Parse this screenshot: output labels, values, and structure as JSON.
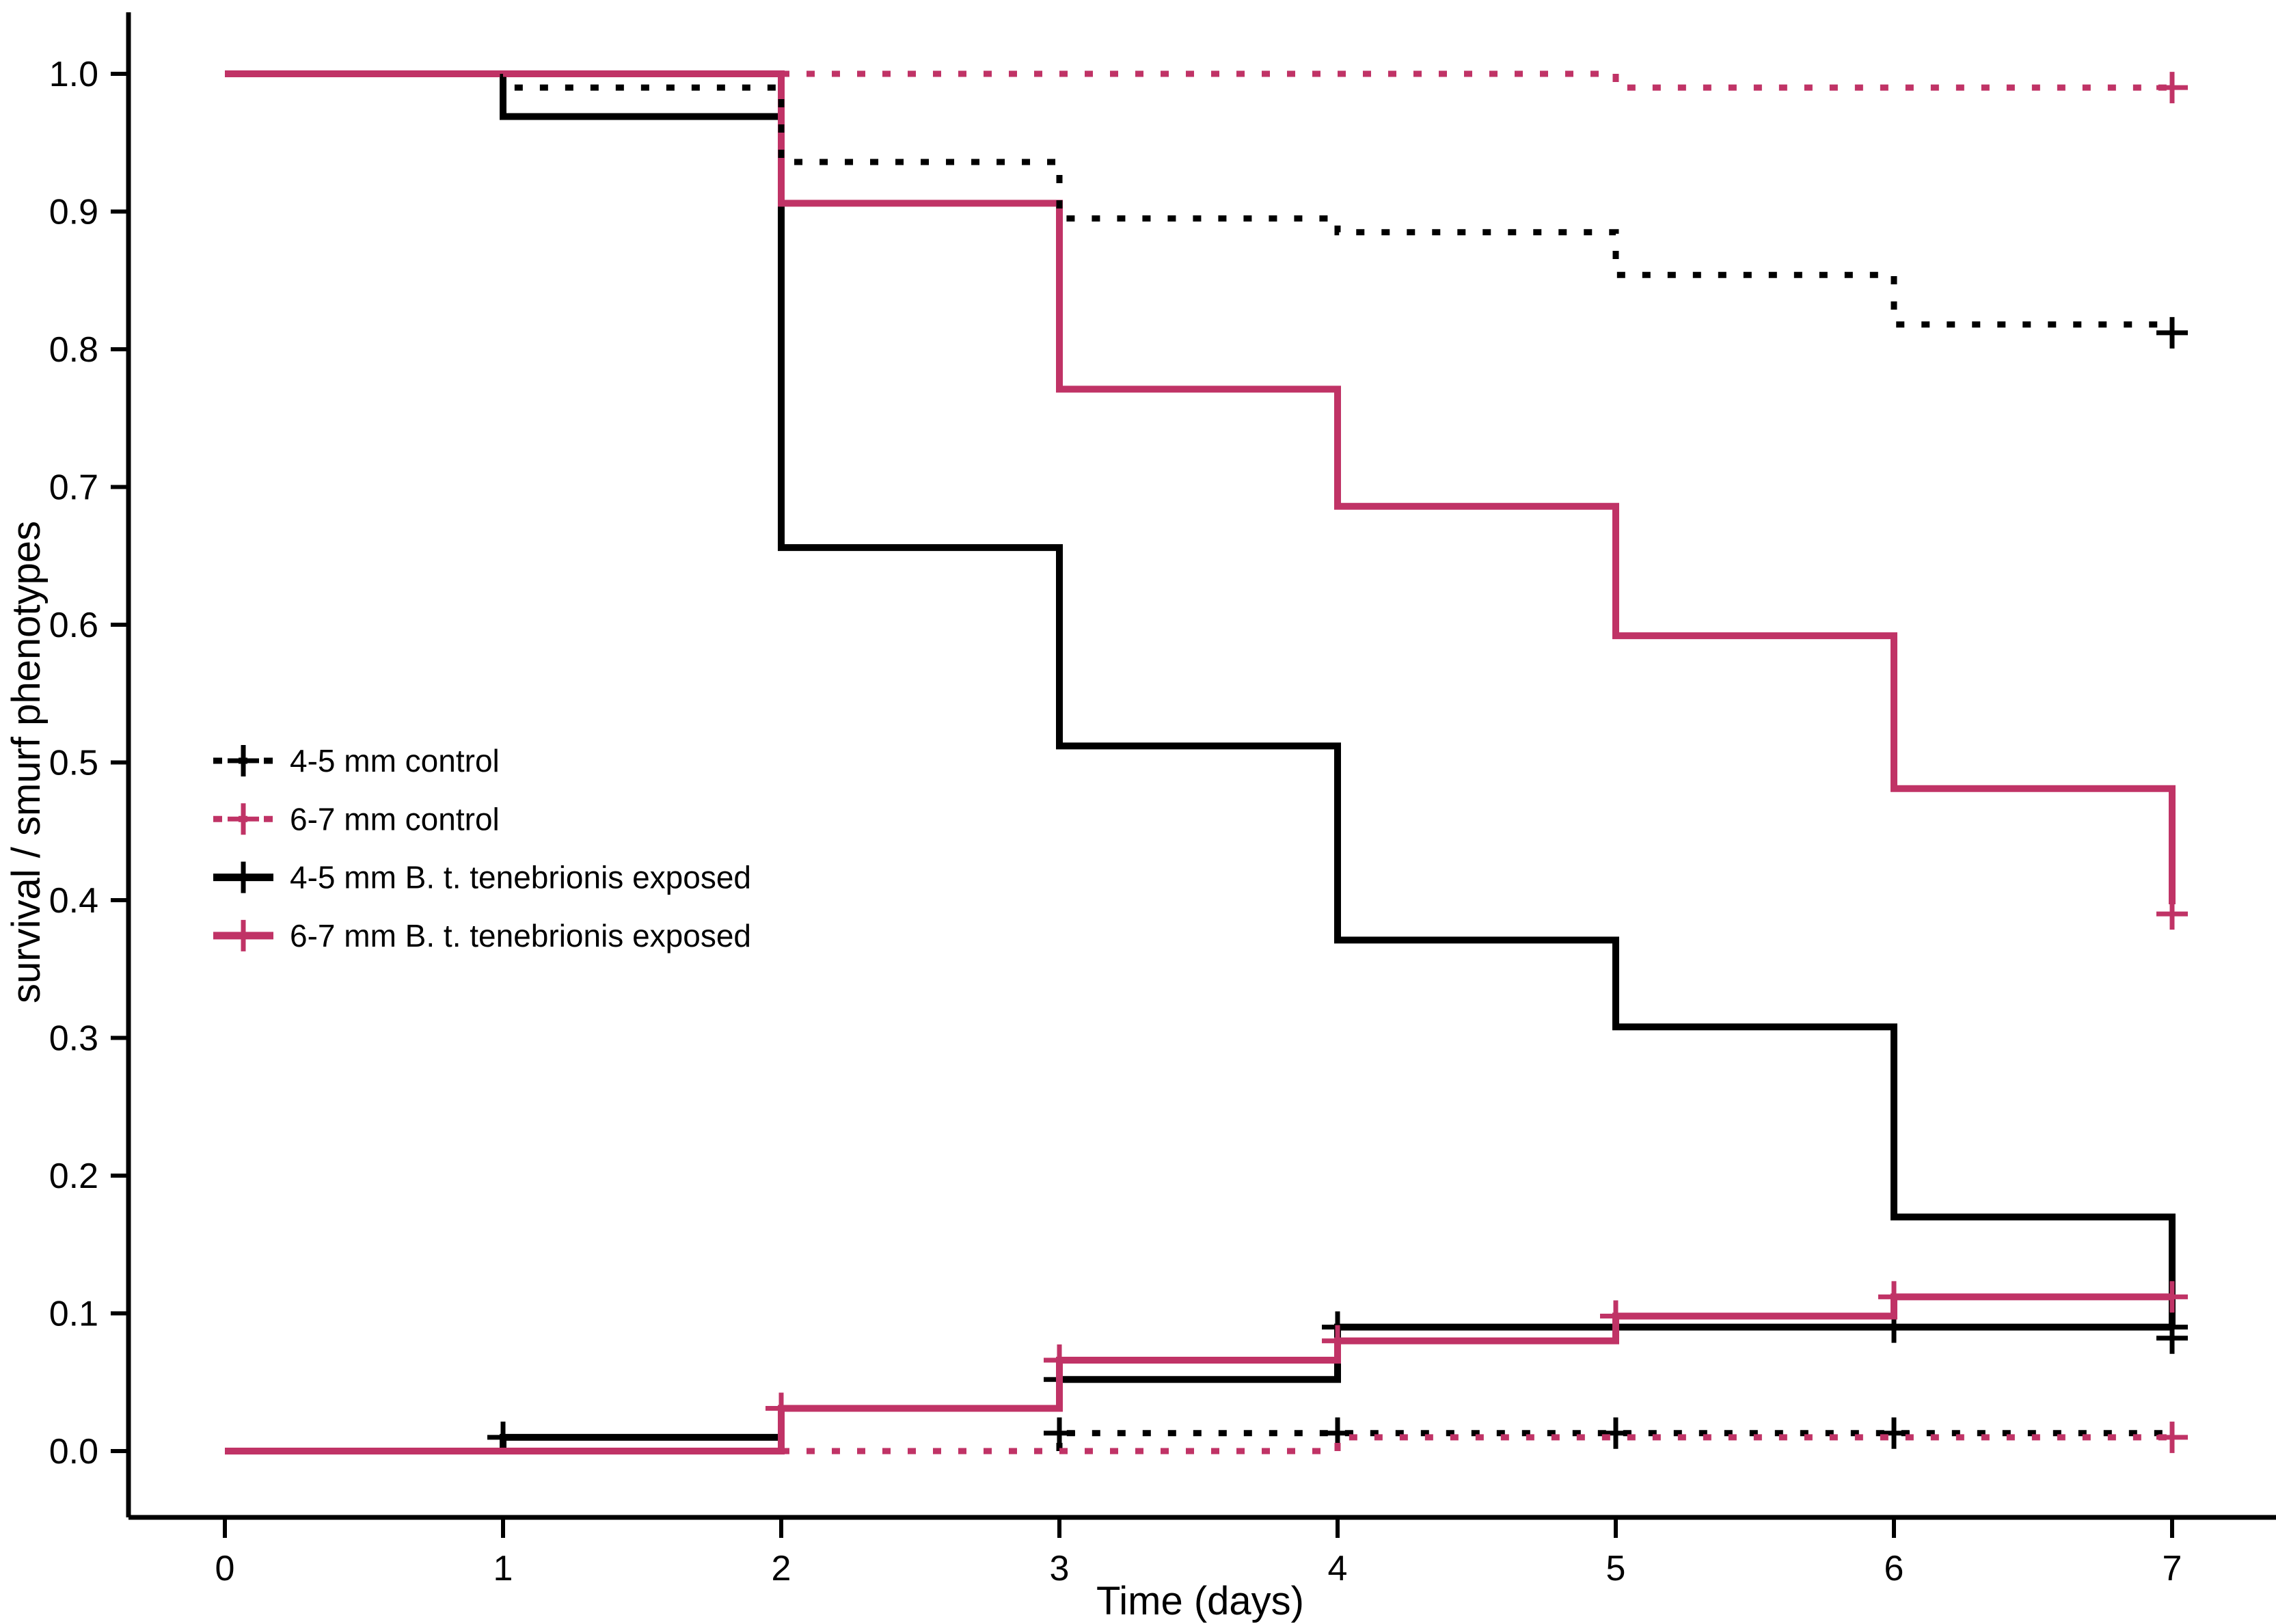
{
  "chart_data": {
    "type": "line",
    "subtype": "kaplan-meier-step-plot",
    "title": "",
    "xlabel": "Time (days)",
    "ylabel": "survival / smurf phenotypes",
    "xlim": [
      0,
      7
    ],
    "ylim": [
      0.0,
      1.0
    ],
    "grid": false,
    "background": "#ffffff",
    "axis_color": "#000000",
    "xticks": [
      "0",
      "1",
      "2",
      "3",
      "4",
      "5",
      "6",
      "7"
    ],
    "yticks": [
      "0.0",
      "0.1",
      "0.2",
      "0.3",
      "0.4",
      "0.5",
      "0.6",
      "0.7",
      "0.8",
      "0.9",
      "1.0"
    ],
    "legend_position": "left-middle-inside",
    "legend": [
      {
        "label": "4-5 mm control",
        "series": 0
      },
      {
        "label": "6-7 mm control",
        "series": 1
      },
      {
        "label": "4-5 mm B. t. tenebrionis exposed",
        "series": 2
      },
      {
        "label": "6-7 mm B. t. tenebrionis exposed",
        "series": 3
      }
    ],
    "draw_order": [
      2,
      3,
      4,
      5,
      0,
      1,
      6,
      7
    ],
    "series": [
      {
        "name": "4-5 mm control (survival)",
        "color": "#000000",
        "dash": "dotted",
        "steps": [
          [
            0,
            1.0
          ],
          [
            1,
            0.99
          ],
          [
            2,
            0.936
          ],
          [
            3,
            0.895
          ],
          [
            4,
            0.885
          ],
          [
            5,
            0.854
          ],
          [
            6,
            0.818
          ]
        ],
        "censors": [
          [
            7,
            0.812
          ]
        ]
      },
      {
        "name": "6-7 mm control (survival)",
        "color": "#C03366",
        "dash": "dotted",
        "steps": [
          [
            0,
            1.0
          ],
          [
            5,
            0.99
          ]
        ],
        "censors": [
          [
            7,
            0.99
          ]
        ]
      },
      {
        "name": "4-5 mm B. t. tenebrionis exposed (survival)",
        "color": "#000000",
        "dash": "solid",
        "steps": [
          [
            0,
            1.0
          ],
          [
            1,
            0.969
          ],
          [
            2,
            0.656
          ],
          [
            3,
            0.512
          ],
          [
            4,
            0.371
          ],
          [
            5,
            0.308
          ],
          [
            6,
            0.17
          ],
          [
            7,
            0.09
          ]
        ],
        "censors": [
          [
            7,
            0.082
          ]
        ]
      },
      {
        "name": "6-7 mm B. t. tenebrionis exposed (survival)",
        "color": "#C03366",
        "dash": "solid",
        "steps": [
          [
            0,
            1.0
          ],
          [
            2,
            0.906
          ],
          [
            3,
            0.771
          ],
          [
            4,
            0.686
          ],
          [
            5,
            0.592
          ],
          [
            6,
            0.481
          ],
          [
            7,
            0.397
          ]
        ],
        "censors": [
          [
            7,
            0.39
          ]
        ]
      },
      {
        "name": "4-5 mm B. t. tenebrionis exposed (smurf phenotypes)",
        "color": "#000000",
        "dash": "solid",
        "steps": [
          [
            0,
            0.0
          ],
          [
            1,
            0.01
          ],
          [
            2,
            0.031
          ],
          [
            3,
            0.052
          ],
          [
            4,
            0.09
          ]
        ],
        "censors": [
          [
            1,
            0.01
          ],
          [
            3,
            0.052
          ],
          [
            4,
            0.09
          ],
          [
            5,
            0.09
          ],
          [
            6,
            0.09
          ],
          [
            7,
            0.09
          ]
        ]
      },
      {
        "name": "6-7 mm B. t. tenebrionis exposed (smurf phenotypes)",
        "color": "#C03366",
        "dash": "solid",
        "steps": [
          [
            0,
            0.0
          ],
          [
            2,
            0.031
          ],
          [
            3,
            0.066
          ],
          [
            4,
            0.08
          ],
          [
            5,
            0.098
          ],
          [
            6,
            0.112
          ]
        ],
        "censors": [
          [
            2,
            0.031
          ],
          [
            3,
            0.066
          ],
          [
            4,
            0.08
          ],
          [
            5,
            0.098
          ],
          [
            6,
            0.112
          ],
          [
            7,
            0.112
          ]
        ]
      },
      {
        "name": "4-5 mm control (smurf phenotypes)",
        "color": "#000000",
        "dash": "dotted",
        "steps": [
          [
            0,
            0.0
          ],
          [
            3,
            0.013
          ]
        ],
        "censors": [
          [
            3,
            0.013
          ],
          [
            4,
            0.013
          ],
          [
            5,
            0.013
          ],
          [
            6,
            0.013
          ]
        ]
      },
      {
        "name": "6-7 mm control (smurf phenotypes)",
        "color": "#C03366",
        "dash": "dotted",
        "steps": [
          [
            0,
            0.0
          ],
          [
            4,
            0.01
          ]
        ],
        "censors": [
          [
            7,
            0.01
          ]
        ]
      }
    ]
  }
}
